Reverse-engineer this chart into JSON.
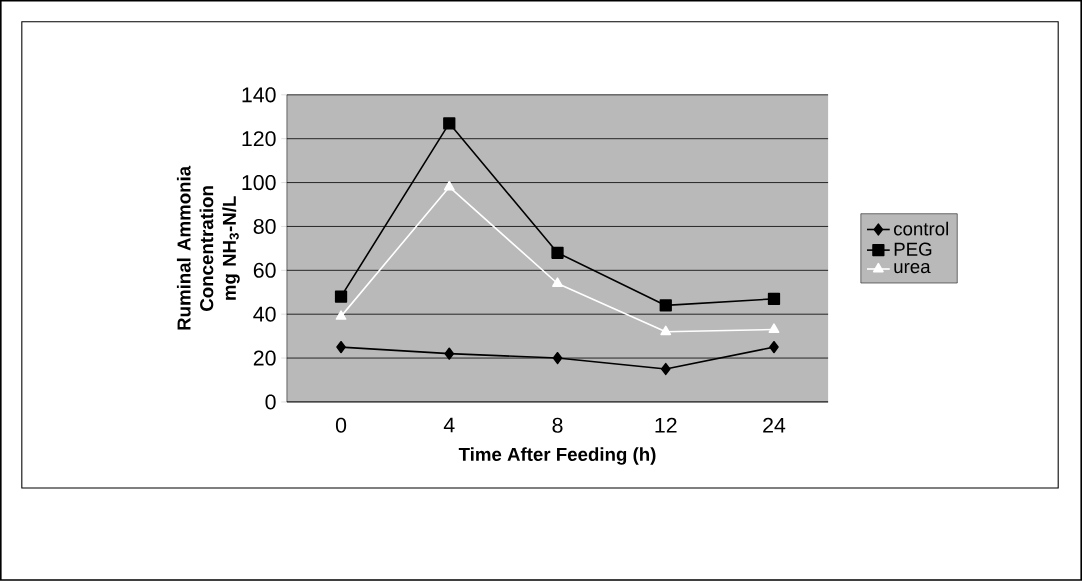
{
  "chart_data": {
    "type": "line",
    "xlabel": "Time After Feeding (h)",
    "ylabel": "Ruminal Ammonia Concentration mg NH$_{3}$-N/L",
    "categories": [
      "0",
      "4",
      "8",
      "12",
      "24"
    ],
    "series": [
      {
        "name": "control",
        "color": "#000000",
        "marker": "diamond",
        "values": [
          25,
          22,
          20,
          15,
          25
        ]
      },
      {
        "name": "PEG",
        "color": "#000000",
        "marker": "square",
        "values": [
          48,
          127,
          68,
          44,
          47
        ]
      },
      {
        "name": "urea",
        "color": "#ffffff",
        "marker": "triangle",
        "values": [
          39,
          98,
          54,
          32,
          33
        ]
      }
    ],
    "ylim": [
      0,
      140
    ],
    "yticks": [
      0,
      20,
      40,
      60,
      80,
      100,
      120,
      140
    ],
    "grid": "y",
    "legend": "right"
  }
}
